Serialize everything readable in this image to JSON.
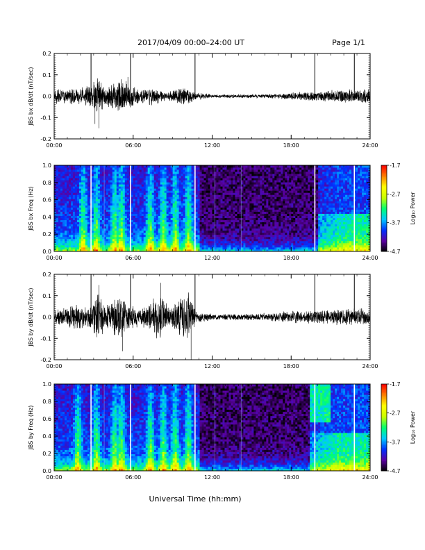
{
  "header": {
    "title": "2017/04/09  00:00–24:00 UT",
    "page": "Page 1/1"
  },
  "x_axis": {
    "ticks": [
      "00:00",
      "06:00",
      "12:00",
      "18:00",
      "24:00"
    ],
    "label": "Universal Time (hh:mm)"
  },
  "colorbar": {
    "ticks": [
      "-1.7",
      "-2.7",
      "-3.7",
      "-4.7"
    ],
    "label": "Log₁₀ Power",
    "range": [
      -4.7,
      -1.7
    ],
    "colors": [
      "#000000",
      "#5a00a0",
      "#0030ff",
      "#00c8ff",
      "#00ff70",
      "#c8ff00",
      "#ffff00",
      "#ff8000",
      "#ff0000"
    ]
  },
  "chart_data": [
    {
      "type": "line",
      "ylabel": "JBS bx dB/dt (nT/sec)",
      "xlim": [
        0,
        24
      ],
      "ylim": [
        -0.2,
        0.2
      ],
      "yticks": [
        "0.2",
        "0.1",
        "0.0",
        "-0.1",
        "-0.2"
      ],
      "grid": false,
      "markers_hours": [
        2.8,
        5.8,
        10.7,
        19.8,
        22.8
      ],
      "envelope": [
        {
          "x": 0,
          "amp": 0.035
        },
        {
          "x": 1.0,
          "amp": 0.04
        },
        {
          "x": 2.0,
          "amp": 0.045
        },
        {
          "x": 2.9,
          "amp": 0.06
        },
        {
          "x": 3.3,
          "amp": 0.11
        },
        {
          "x": 4.0,
          "amp": 0.05
        },
        {
          "x": 5.0,
          "amp": 0.09
        },
        {
          "x": 5.6,
          "amp": 0.07
        },
        {
          "x": 6.5,
          "amp": 0.035
        },
        {
          "x": 7.6,
          "amp": 0.045
        },
        {
          "x": 8.5,
          "amp": 0.02
        },
        {
          "x": 9.8,
          "amp": 0.05
        },
        {
          "x": 10.7,
          "amp": 0.02
        },
        {
          "x": 12.0,
          "amp": 0.008
        },
        {
          "x": 16.0,
          "amp": 0.01
        },
        {
          "x": 18.5,
          "amp": 0.02
        },
        {
          "x": 20.0,
          "amp": 0.025
        },
        {
          "x": 22.0,
          "amp": 0.035
        },
        {
          "x": 24.0,
          "amp": 0.035
        }
      ],
      "spikes": [
        {
          "x": 3.4,
          "y": -0.15
        },
        {
          "x": 3.1,
          "y": -0.13
        },
        {
          "x": 5.6,
          "y": 0.09
        }
      ]
    },
    {
      "type": "heatmap",
      "ylabel": "JBS bx Freq (Hz)",
      "xlim": [
        0,
        24
      ],
      "ylim": [
        0.0,
        1.0
      ],
      "yticks": [
        "1.0",
        "0.8",
        "0.6",
        "0.4",
        "0.2",
        "0.0"
      ],
      "zlim": [
        -4.7,
        -1.7
      ],
      "markers_hours": [
        2.8,
        5.8,
        10.7,
        19.8,
        22.8
      ],
      "activity_hours": [
        2.2,
        3.2,
        4.6,
        5.1,
        7.3,
        8.3,
        9.2,
        10.2
      ],
      "late_activity_from": 20.0
    },
    {
      "type": "line",
      "ylabel": "JBS by dB/dt (nT/sec)",
      "xlim": [
        0,
        24
      ],
      "ylim": [
        -0.2,
        0.2
      ],
      "yticks": [
        "0.2",
        "0.1",
        "0.0",
        "-0.1",
        "-0.2"
      ],
      "grid": false,
      "markers_hours": [
        2.8,
        5.8,
        10.7,
        19.8,
        22.8
      ],
      "envelope": [
        {
          "x": 0,
          "amp": 0.04
        },
        {
          "x": 1.0,
          "amp": 0.05
        },
        {
          "x": 1.5,
          "amp": 0.07
        },
        {
          "x": 2.5,
          "amp": 0.05
        },
        {
          "x": 3.3,
          "amp": 0.12
        },
        {
          "x": 4.0,
          "amp": 0.06
        },
        {
          "x": 4.9,
          "amp": 0.12
        },
        {
          "x": 5.6,
          "amp": 0.07
        },
        {
          "x": 6.5,
          "amp": 0.04
        },
        {
          "x": 7.3,
          "amp": 0.07
        },
        {
          "x": 8.0,
          "amp": 0.13
        },
        {
          "x": 8.8,
          "amp": 0.05
        },
        {
          "x": 10.2,
          "amp": 0.12
        },
        {
          "x": 10.8,
          "amp": 0.03
        },
        {
          "x": 12.0,
          "amp": 0.015
        },
        {
          "x": 16.0,
          "amp": 0.018
        },
        {
          "x": 18.0,
          "amp": 0.03
        },
        {
          "x": 20.0,
          "amp": 0.035
        },
        {
          "x": 22.0,
          "amp": 0.04
        },
        {
          "x": 24.0,
          "amp": 0.045
        }
      ],
      "spikes": [
        {
          "x": 10.4,
          "y": -0.2
        },
        {
          "x": 5.2,
          "y": -0.16
        },
        {
          "x": 3.4,
          "y": 0.15
        },
        {
          "x": 8.1,
          "y": 0.16
        }
      ]
    },
    {
      "type": "heatmap",
      "ylabel": "JBS by Freq (Hz)",
      "xlim": [
        0,
        24
      ],
      "ylim": [
        0.0,
        1.0
      ],
      "yticks": [
        "1.0",
        "0.8",
        "0.6",
        "0.4",
        "0.2",
        "0.0"
      ],
      "zlim": [
        -4.7,
        -1.7
      ],
      "markers_hours": [
        2.8,
        5.8,
        10.7,
        19.8,
        22.8
      ],
      "activity_hours": [
        1.8,
        3.2,
        4.6,
        5.1,
        7.3,
        8.3,
        9.2,
        10.2
      ],
      "late_activity_from": 19.4
    }
  ]
}
